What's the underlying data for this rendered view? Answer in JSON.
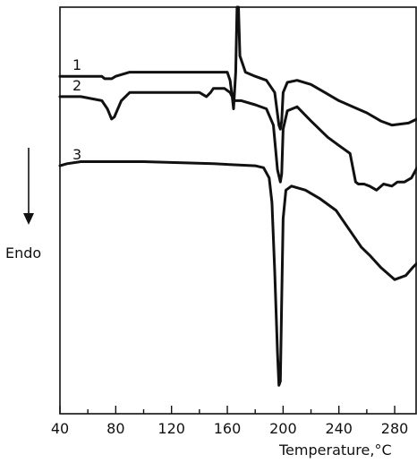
{
  "chart_data": {
    "type": "line",
    "xlabel": "Temperature,°C",
    "ylabel": "Endo",
    "x_ticks": [
      40,
      80,
      120,
      160,
      200,
      240,
      280
    ],
    "xlim": [
      40,
      296
    ],
    "ylim": [
      0,
      100
    ],
    "grid": false,
    "series": [
      {
        "name": "1",
        "points": [
          [
            40,
            83
          ],
          [
            70,
            83
          ],
          [
            72,
            82.4
          ],
          [
            77,
            82.4
          ],
          [
            80,
            83
          ],
          [
            90,
            84
          ],
          [
            150,
            84
          ],
          [
            160,
            84
          ],
          [
            162,
            82
          ],
          [
            163.5,
            78
          ],
          [
            164.5,
            75
          ],
          [
            166,
            84
          ],
          [
            167,
            100
          ],
          [
            168,
            100
          ],
          [
            169,
            88
          ],
          [
            173,
            84
          ],
          [
            180,
            83
          ],
          [
            188,
            82
          ],
          [
            194,
            79
          ],
          [
            197,
            71
          ],
          [
            198,
            70
          ],
          [
            199,
            72
          ],
          [
            200,
            79
          ],
          [
            203,
            81.5
          ],
          [
            210,
            82
          ],
          [
            220,
            81
          ],
          [
            230,
            79
          ],
          [
            240,
            77
          ],
          [
            250,
            75.5
          ],
          [
            260,
            74
          ],
          [
            270,
            72
          ],
          [
            278,
            71
          ],
          [
            290,
            71.5
          ],
          [
            296,
            72.5
          ]
        ]
      },
      {
        "name": "2",
        "points": [
          [
            40,
            78
          ],
          [
            55,
            78
          ],
          [
            70,
            77
          ],
          [
            74,
            75
          ],
          [
            77,
            72.5
          ],
          [
            79,
            73
          ],
          [
            84,
            77
          ],
          [
            90,
            79
          ],
          [
            140,
            79
          ],
          [
            145,
            78
          ],
          [
            148,
            79
          ],
          [
            150,
            80
          ],
          [
            158,
            80
          ],
          [
            162,
            79
          ],
          [
            165,
            77
          ],
          [
            170,
            77
          ],
          [
            180,
            76
          ],
          [
            188,
            75
          ],
          [
            193,
            71
          ],
          [
            196,
            60
          ],
          [
            198,
            57
          ],
          [
            199,
            59
          ],
          [
            200,
            70
          ],
          [
            203,
            74.5
          ],
          [
            210,
            75.5
          ],
          [
            220,
            72
          ],
          [
            232,
            68
          ],
          [
            240,
            66
          ],
          [
            248,
            64
          ],
          [
            252,
            57
          ],
          [
            254,
            56.5
          ],
          [
            258,
            56.5
          ],
          [
            262,
            56
          ],
          [
            267,
            55
          ],
          [
            272,
            56.5
          ],
          [
            278,
            56
          ],
          [
            282,
            57
          ],
          [
            287,
            57
          ],
          [
            292,
            58
          ],
          [
            296,
            60.5
          ]
        ]
      },
      {
        "name": "3",
        "points": [
          [
            40,
            61
          ],
          [
            45,
            61.5
          ],
          [
            55,
            62
          ],
          [
            100,
            62
          ],
          [
            150,
            61.5
          ],
          [
            180,
            61
          ],
          [
            186,
            60.5
          ],
          [
            190,
            58
          ],
          [
            192,
            52
          ],
          [
            194,
            35
          ],
          [
            196,
            15
          ],
          [
            197,
            7
          ],
          [
            198,
            8
          ],
          [
            199,
            28
          ],
          [
            200,
            48
          ],
          [
            202,
            55
          ],
          [
            206,
            56
          ],
          [
            216,
            55
          ],
          [
            226,
            53
          ],
          [
            238,
            50
          ],
          [
            246,
            46
          ],
          [
            250,
            44
          ],
          [
            256,
            41
          ],
          [
            262,
            39
          ],
          [
            270,
            36
          ],
          [
            280,
            33
          ],
          [
            288,
            34
          ],
          [
            293,
            36
          ],
          [
            296,
            37
          ]
        ]
      }
    ]
  }
}
